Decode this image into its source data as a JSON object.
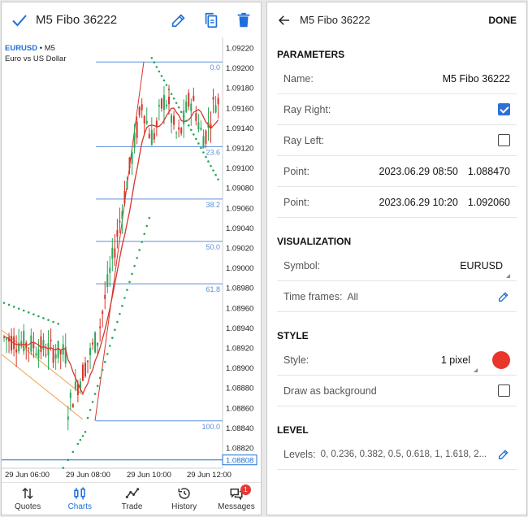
{
  "left": {
    "title": "M5 Fibo 36222",
    "symbol": {
      "name": "EURUSD",
      "period": "• M5",
      "description": "Euro vs US Dollar"
    },
    "price_axis": [
      "1.09220",
      "1.09200",
      "1.09180",
      "1.09160",
      "1.09140",
      "1.09120",
      "1.09100",
      "1.09080",
      "1.09060",
      "1.09040",
      "1.09020",
      "1.09000",
      "1.08980",
      "1.08960",
      "1.08940",
      "1.08920",
      "1.08900",
      "1.08880",
      "1.08860",
      "1.08840",
      "1.08820"
    ],
    "current_price": "1.08808",
    "time_axis": [
      "29 Jun 06:00",
      "29 Jun 08:00",
      "29 Jun 10:00",
      "29 Jun 12:00"
    ],
    "fibo_levels": [
      "0.0",
      "23.6",
      "38.2",
      "50.0",
      "61.8",
      "100.0"
    ],
    "colors": {
      "accent": "#1e6fd9",
      "fibo": "#5b8fd9",
      "bull": "#2aa85a",
      "bear": "#d9342b",
      "sar": "#2aa85a"
    },
    "nav": [
      {
        "label": "Quotes",
        "icon": "quotes-icon"
      },
      {
        "label": "Charts",
        "icon": "charts-icon"
      },
      {
        "label": "Trade",
        "icon": "trade-icon"
      },
      {
        "label": "History",
        "icon": "history-icon"
      },
      {
        "label": "Messages",
        "icon": "messages-icon",
        "badge": "1"
      }
    ]
  },
  "right": {
    "title": "M5 Fibo 36222",
    "done": "DONE",
    "parameters": {
      "heading": "PARAMETERS",
      "name_label": "Name:",
      "name_value": "M5 Fibo 36222",
      "ray_right_label": "Ray Right:",
      "ray_right": true,
      "ray_left_label": "Ray Left:",
      "ray_left": false,
      "point1_label": "Point:",
      "point1_date": "2023.06.29 08:50",
      "point1_price": "1.088470",
      "point2_label": "Point:",
      "point2_date": "2023.06.29 10:20",
      "point2_price": "1.092060"
    },
    "visualization": {
      "heading": "VISUALIZATION",
      "symbol_label": "Symbol:",
      "symbol_value": "EURUSD",
      "timeframes_label": "Time frames:",
      "timeframes_value": "All"
    },
    "style": {
      "heading": "STYLE",
      "style_label": "Style:",
      "style_value": "1 pixel",
      "color": "#e8362b",
      "background_label": "Draw as background",
      "background": false
    },
    "level": {
      "heading": "LEVEL",
      "levels_label": "Levels:",
      "levels_value": "0, 0.236, 0.382, 0.5, 0.618, 1, 1.618, 2..."
    }
  }
}
